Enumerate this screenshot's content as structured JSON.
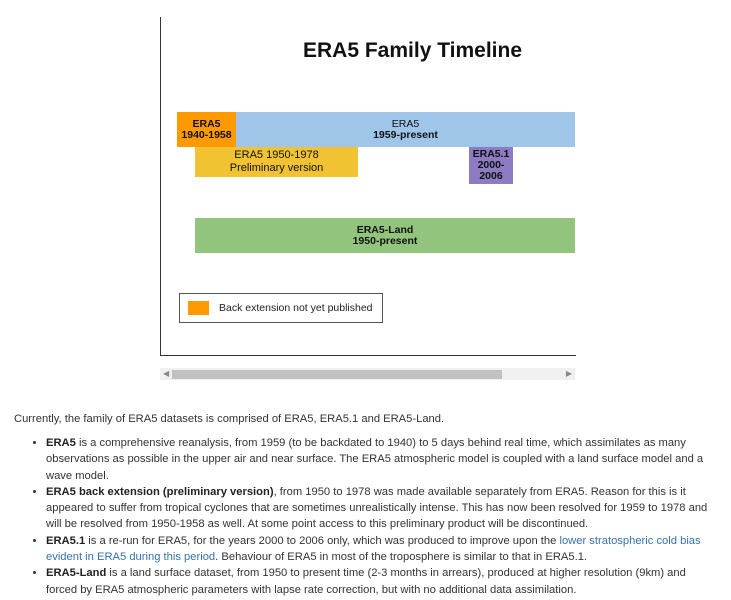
{
  "diagram": {
    "title": "ERA5 Family Timeline",
    "bars": [
      {
        "line1": "ERA5",
        "line2": "1940-1958",
        "color": "#ff9900"
      },
      {
        "line1": "ERA5",
        "line2": "1959-present",
        "color": "#9fc5e8"
      },
      {
        "line1": "ERA5 1950-1978",
        "line2": "Preliminary version",
        "color": "#f1c232"
      },
      {
        "line1": "ERA5.1",
        "line2": "2000-",
        "line3": "2006",
        "color": "#8e7cc3"
      },
      {
        "line1": "ERA5-Land",
        "line2": "1950-present",
        "color": "#93c47d"
      }
    ],
    "legend": {
      "label": "Back extension not yet published",
      "color": "#ff9900"
    }
  },
  "content": {
    "intro": "Currently, the family of ERA5 datasets is comprised of ERA5, ERA5.1 and ERA5-Land.",
    "items": [
      {
        "term": "ERA5",
        "text": " is a comprehensive reanalysis, from 1959 (to be backdated to 1940) to 5 days behind real time, which assimilates as many observations as possible in the upper air and near surface. The ERA5 atmospheric model is coupled with a land surface model and a wave model."
      },
      {
        "term": "ERA5 back extension (preliminary version)",
        "text": ", from 1950 to 1978 was made available separately from ERA5.  Reason for this is it appeared to suffer from tropical cyclones that are sometimes unrealistically intense. This has now been resolved for 1959 to 1978 and will be resolved from 1950-1958 as well. At some point access to this preliminary product will be discontinued."
      },
      {
        "term": "ERA5.1",
        "text": " is a re-run for ERA5, for the years 2000 to 2006 only, which was produced to improve upon the ",
        "link": "lower stratospheric cold bias evident in ERA5 during this period",
        "text2": ". Behaviour of ERA5 in most of the troposphere is similar to that in ERA5.1."
      },
      {
        "term": "ERA5-Land",
        "text": " is a land surface dataset, from 1950 to present time (2-3 months in arrears), produced at higher resolution (9km) and forced by ERA5 atmospheric parameters with lapse rate correction, but with no additional data assimilation."
      }
    ]
  }
}
